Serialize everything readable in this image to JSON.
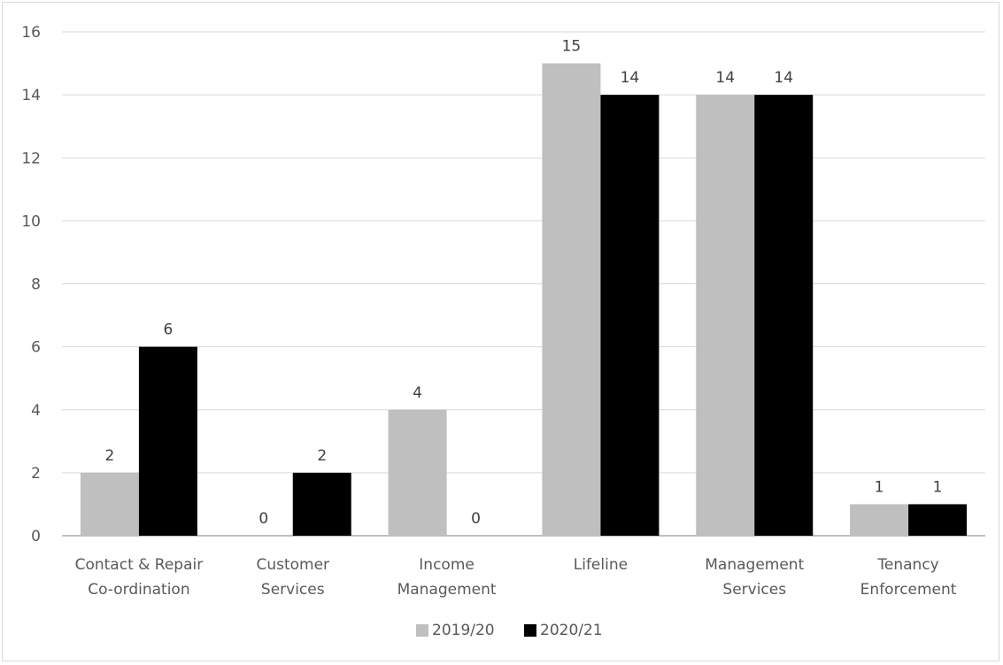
{
  "chart_data": {
    "type": "bar",
    "categories": [
      [
        "Contact  & Repair",
        "Co-ordination"
      ],
      [
        "Customer",
        "Services"
      ],
      [
        "Income",
        "Management"
      ],
      [
        "Lifeline"
      ],
      [
        "Management",
        "Services"
      ],
      [
        "Tenancy",
        "Enforcement"
      ]
    ],
    "series": [
      {
        "name": "2019/20",
        "color": "#bfbfbf",
        "values": [
          2,
          0,
          4,
          15,
          14,
          1
        ]
      },
      {
        "name": "2020/21",
        "color": "#000000",
        "values": [
          6,
          2,
          0,
          14,
          14,
          1
        ]
      }
    ],
    "y_ticks": [
      "0",
      "2",
      "4",
      "6",
      "8",
      "10",
      "12",
      "14",
      "16"
    ],
    "ylim": [
      0,
      16
    ],
    "grid": true,
    "data_labels": true,
    "legend_position": "bottom",
    "title": "",
    "xlabel": "",
    "ylabel": ""
  }
}
